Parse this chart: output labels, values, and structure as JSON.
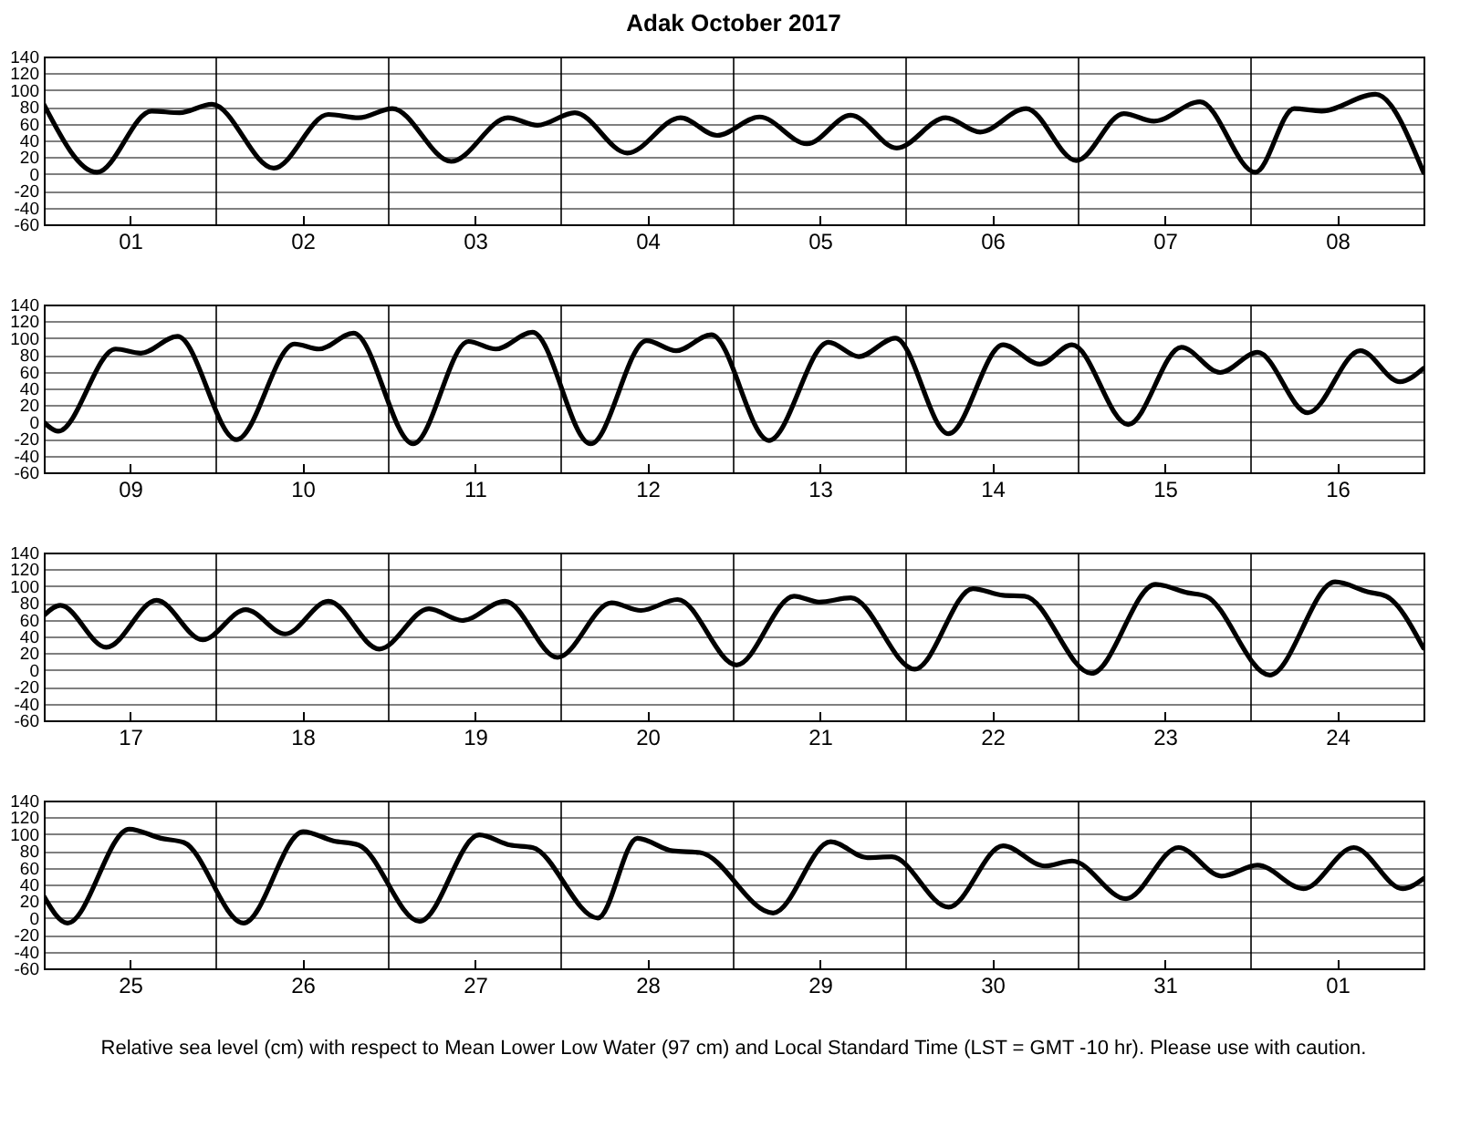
{
  "chart_data": [
    {
      "type": "line",
      "title": "Adak October 2017",
      "xlim": [
        "2017-10-01T00:00",
        "2017-10-09T00:00"
      ],
      "ylim": [
        -60,
        140
      ],
      "yticks": [
        -60,
        -40,
        -20,
        0,
        20,
        40,
        60,
        80,
        100,
        120,
        140
      ],
      "grid": "y",
      "xticks": [
        {
          "value": "2017-10-01T12:00",
          "label": "01"
        },
        {
          "value": "2017-10-02T12:00",
          "label": "02"
        },
        {
          "value": "2017-10-03T12:00",
          "label": "03"
        },
        {
          "value": "2017-10-04T12:00",
          "label": "04"
        },
        {
          "value": "2017-10-05T12:00",
          "label": "05"
        },
        {
          "value": "2017-10-06T12:00",
          "label": "06"
        },
        {
          "value": "2017-10-07T12:00",
          "label": "07"
        },
        {
          "value": "2017-10-08T12:00",
          "label": "08"
        }
      ],
      "ref_lines": [
        {
          "axis": "x",
          "value": "2017-10-02T00:00"
        },
        {
          "axis": "x",
          "value": "2017-10-03T00:00"
        },
        {
          "axis": "x",
          "value": "2017-10-04T00:00"
        },
        {
          "axis": "x",
          "value": "2017-10-05T00:00"
        },
        {
          "axis": "x",
          "value": "2017-10-06T00:00"
        },
        {
          "axis": "x",
          "value": "2017-10-07T00:00"
        },
        {
          "axis": "x",
          "value": "2017-10-08T00:00"
        }
      ],
      "series": [
        {
          "color": "#000000",
          "x": [
            "2017-10-01T00:00",
            "2017-10-01T07:24",
            "2017-10-01T15:00",
            "2017-10-01T18:54",
            "2017-10-01T23:24",
            "2017-10-02T08:00",
            "2017-10-02T15:36",
            "2017-10-02T19:48",
            "2017-10-03T00:30",
            "2017-10-03T08:42",
            "2017-10-03T16:36",
            "2017-10-03T20:42",
            "2017-10-04T01:54",
            "2017-10-04T09:12",
            "2017-10-04T16:36",
            "2017-10-04T21:42",
            "2017-10-05T03:36",
            "2017-10-05T10:12",
            "2017-10-05T16:18",
            "2017-10-05T22:42",
            "2017-10-06T05:30",
            "2017-10-06T10:18",
            "2017-10-06T16:42",
            "2017-10-06T23:42",
            "2017-10-07T06:18",
            "2017-10-07T10:30",
            "2017-10-07T16:54",
            "2017-10-08T00:36",
            "2017-10-08T06:00",
            "2017-10-08T09:48",
            "2017-10-08T17:18",
            "2017-10-09T00:00"
          ],
          "values": [
            83,
            2,
            75,
            73,
            83,
            7,
            71,
            67,
            78,
            15,
            67,
            58,
            73,
            25,
            67,
            46,
            68,
            36,
            70,
            31,
            67,
            50,
            78,
            16,
            72,
            63,
            86,
            2,
            78,
            75,
            95,
            2
          ]
        }
      ]
    },
    {
      "type": "line",
      "xlim": [
        "2017-10-09T00:00",
        "2017-10-17T00:00"
      ],
      "ylim": [
        -60,
        140
      ],
      "yticks": [
        -60,
        -40,
        -20,
        0,
        20,
        40,
        60,
        80,
        100,
        120,
        140
      ],
      "grid": "y",
      "xticks": [
        {
          "value": "2017-10-09T12:00",
          "label": "09"
        },
        {
          "value": "2017-10-10T12:00",
          "label": "10"
        },
        {
          "value": "2017-10-11T12:00",
          "label": "11"
        },
        {
          "value": "2017-10-12T12:00",
          "label": "12"
        },
        {
          "value": "2017-10-13T12:00",
          "label": "13"
        },
        {
          "value": "2017-10-14T12:00",
          "label": "14"
        },
        {
          "value": "2017-10-15T12:00",
          "label": "15"
        },
        {
          "value": "2017-10-16T12:00",
          "label": "16"
        }
      ],
      "ref_lines": [
        {
          "axis": "x",
          "value": "2017-10-10T00:00"
        },
        {
          "axis": "x",
          "value": "2017-10-11T00:00"
        },
        {
          "axis": "x",
          "value": "2017-10-12T00:00"
        },
        {
          "axis": "x",
          "value": "2017-10-13T00:00"
        },
        {
          "axis": "x",
          "value": "2017-10-14T00:00"
        },
        {
          "axis": "x",
          "value": "2017-10-15T00:00"
        },
        {
          "axis": "x",
          "value": "2017-10-16T00:00"
        }
      ],
      "series": [
        {
          "color": "#000000",
          "x": [
            "2017-10-09T00:00",
            "2017-10-09T02:00",
            "2017-10-09T10:00",
            "2017-10-09T13:30",
            "2017-10-09T18:36",
            "2017-10-10T02:48",
            "2017-10-10T10:54",
            "2017-10-10T14:18",
            "2017-10-10T19:06",
            "2017-10-11T03:24",
            "2017-10-11T11:06",
            "2017-10-11T14:54",
            "2017-10-11T20:00",
            "2017-10-12T04:06",
            "2017-10-12T11:54",
            "2017-10-12T16:00",
            "2017-10-12T20:54",
            "2017-10-13T04:54",
            "2017-10-13T13:12",
            "2017-10-13T17:24",
            "2017-10-13T22:30",
            "2017-10-14T05:54",
            "2017-10-14T13:30",
            "2017-10-14T18:36",
            "2017-10-14T23:06",
            "2017-10-15T06:54",
            "2017-10-15T14:18",
            "2017-10-15T19:42",
            "2017-10-16T00:54",
            "2017-10-16T07:54",
            "2017-10-16T15:12",
            "2017-10-16T20:42",
            "2017-10-17T00:00"
          ],
          "values": [
            0,
            -11,
            87,
            82,
            102,
            -21,
            93,
            87,
            106,
            -26,
            96,
            87,
            107,
            -26,
            97,
            85,
            104,
            -22,
            95,
            78,
            100,
            -14,
            92,
            69,
            92,
            -3,
            89,
            59,
            83,
            11,
            85,
            48,
            64
          ]
        }
      ]
    },
    {
      "type": "line",
      "xlim": [
        "2017-10-17T00:00",
        "2017-10-25T00:00"
      ],
      "ylim": [
        -60,
        140
      ],
      "yticks": [
        -60,
        -40,
        -20,
        0,
        20,
        40,
        60,
        80,
        100,
        120,
        140
      ],
      "grid": "y",
      "xticks": [
        {
          "value": "2017-10-17T12:00",
          "label": "17"
        },
        {
          "value": "2017-10-18T12:00",
          "label": "18"
        },
        {
          "value": "2017-10-19T12:00",
          "label": "19"
        },
        {
          "value": "2017-10-20T12:00",
          "label": "20"
        },
        {
          "value": "2017-10-21T12:00",
          "label": "21"
        },
        {
          "value": "2017-10-22T12:00",
          "label": "22"
        },
        {
          "value": "2017-10-23T12:00",
          "label": "23"
        },
        {
          "value": "2017-10-24T12:00",
          "label": "24"
        }
      ],
      "ref_lines": [
        {
          "axis": "x",
          "value": "2017-10-18T00:00"
        },
        {
          "axis": "x",
          "value": "2017-10-19T00:00"
        },
        {
          "axis": "x",
          "value": "2017-10-20T00:00"
        },
        {
          "axis": "x",
          "value": "2017-10-21T00:00"
        },
        {
          "axis": "x",
          "value": "2017-10-22T00:00"
        },
        {
          "axis": "x",
          "value": "2017-10-23T00:00"
        },
        {
          "axis": "x",
          "value": "2017-10-24T00:00"
        }
      ],
      "series": [
        {
          "color": "#000000",
          "x": [
            "2017-10-17T00:00",
            "2017-10-17T02:18",
            "2017-10-17T08:42",
            "2017-10-17T15:42",
            "2017-10-17T22:06",
            "2017-10-18T04:06",
            "2017-10-18T09:36",
            "2017-10-18T15:36",
            "2017-10-18T22:42",
            "2017-10-19T05:36",
            "2017-10-19T10:12",
            "2017-10-19T16:12",
            "2017-10-19T23:30",
            "2017-10-20T07:00",
            "2017-10-20T11:06",
            "2017-10-20T16:12",
            "2017-10-21T00:24",
            "2017-10-21T08:24",
            "2017-10-21T11:54",
            "2017-10-21T16:18",
            "2017-10-22T01:12",
            "2017-10-22T09:18",
            "2017-10-22T13:30",
            "2017-10-22T16:30",
            "2017-10-23T01:48",
            "2017-10-23T10:42",
            "2017-10-23T15:12",
            "2017-10-23T17:42",
            "2017-10-24T02:36",
            "2017-10-24T11:42",
            "2017-10-24T16:18",
            "2017-10-24T18:48",
            "2017-10-25T00:00"
          ],
          "values": [
            65,
            77,
            27,
            83,
            36,
            72,
            43,
            82,
            25,
            73,
            59,
            82,
            15,
            80,
            71,
            84,
            6,
            88,
            81,
            86,
            1,
            97,
            89,
            88,
            -4,
            102,
            92,
            88,
            -6,
            105,
            93,
            88,
            26
          ]
        }
      ]
    },
    {
      "type": "line",
      "xlim": [
        "2017-10-25T00:00",
        "2017-11-02T00:00"
      ],
      "ylim": [
        -60,
        140
      ],
      "yticks": [
        -60,
        -40,
        -20,
        0,
        20,
        40,
        60,
        80,
        100,
        120,
        140
      ],
      "grid": "y",
      "annotations": [
        "Relative sea level (cm) with respect to Mean Lower Low Water (97 cm) and Local Standard Time (LST = GMT -10 hr). Please use with caution."
      ],
      "xticks": [
        {
          "value": "2017-10-25T12:00",
          "label": "25"
        },
        {
          "value": "2017-10-26T12:00",
          "label": "26"
        },
        {
          "value": "2017-10-27T12:00",
          "label": "27"
        },
        {
          "value": "2017-10-28T12:00",
          "label": "28"
        },
        {
          "value": "2017-10-29T12:00",
          "label": "29"
        },
        {
          "value": "2017-10-30T12:00",
          "label": "30"
        },
        {
          "value": "2017-10-31T12:00",
          "label": "31"
        },
        {
          "value": "2017-11-01T12:00",
          "label": "01"
        }
      ],
      "ref_lines": [
        {
          "axis": "x",
          "value": "2017-10-26T00:00"
        },
        {
          "axis": "x",
          "value": "2017-10-27T00:00"
        },
        {
          "axis": "x",
          "value": "2017-10-28T00:00"
        },
        {
          "axis": "x",
          "value": "2017-10-29T00:00"
        },
        {
          "axis": "x",
          "value": "2017-10-30T00:00"
        },
        {
          "axis": "x",
          "value": "2017-10-31T00:00"
        },
        {
          "axis": "x",
          "value": "2017-11-01T00:00"
        }
      ],
      "series": [
        {
          "color": "#000000",
          "x": [
            "2017-10-25T00:00",
            "2017-10-25T03:18",
            "2017-10-25T11:54",
            "2017-10-25T16:18",
            "2017-10-25T19:30",
            "2017-10-26T03:48",
            "2017-10-26T12:06",
            "2017-10-26T16:18",
            "2017-10-26T19:48",
            "2017-10-27T04:18",
            "2017-10-27T12:36",
            "2017-10-27T16:54",
            "2017-10-27T20:00",
            "2017-10-28T05:06",
            "2017-10-28T10:36",
            "2017-10-28T15:30",
            "2017-10-28T19:18",
            "2017-10-29T05:30",
            "2017-10-29T13:30",
            "2017-10-29T18:36",
            "2017-10-29T22:00",
            "2017-10-30T05:54",
            "2017-10-30T13:30",
            "2017-10-30T19:18",
            "2017-10-30T23:06",
            "2017-10-31T06:36",
            "2017-10-31T13:54",
            "2017-10-31T19:54",
            "2017-11-01T00:54",
            "2017-11-01T07:18",
            "2017-11-01T14:18",
            "2017-11-01T21:06",
            "2017-11-02T00:00"
          ],
          "values": [
            26,
            -6,
            106,
            95,
            90,
            -6,
            103,
            92,
            87,
            -4,
            99,
            87,
            84,
            0,
            95,
            80,
            78,
            6,
            91,
            72,
            73,
            13,
            86,
            62,
            68,
            23,
            84,
            50,
            63,
            35,
            84,
            35,
            47
          ]
        }
      ]
    }
  ]
}
